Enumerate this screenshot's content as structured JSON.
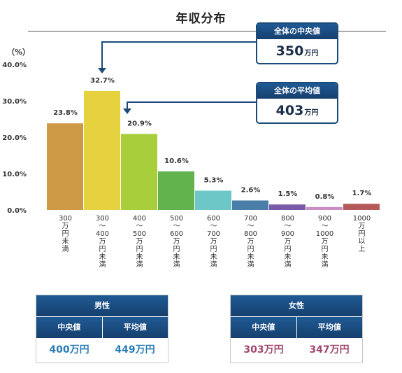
{
  "title": "年収分布",
  "y_unit": "（%）",
  "median_box": {
    "label": "全体の中央値",
    "value": "350",
    "unit": "万円"
  },
  "average_box": {
    "label": "全体の平均値",
    "value": "403",
    "unit": "万円"
  },
  "male": {
    "label": "男性",
    "median_label": "中央値",
    "average_label": "平均値",
    "median": "400万円",
    "average": "449万円"
  },
  "female": {
    "label": "女性",
    "median_label": "中央値",
    "average_label": "平均値",
    "median": "303万円",
    "average": "347万円"
  },
  "chart_data": {
    "type": "bar",
    "title": "年収分布",
    "ylabel": "（%）",
    "ylim": [
      0,
      40
    ],
    "yticks": [
      "0.0%",
      "10.0%",
      "20.0%",
      "30.0%",
      "40.0%"
    ],
    "tick_values": [
      0,
      10,
      20,
      30,
      40
    ],
    "grid": false,
    "categories": [
      [
        "300",
        "万",
        "円",
        "未",
        "満"
      ],
      [
        "300",
        "〜",
        "400",
        "万",
        "円",
        "未",
        "満"
      ],
      [
        "400",
        "〜",
        "500",
        "万",
        "円",
        "未",
        "満"
      ],
      [
        "500",
        "〜",
        "600",
        "万",
        "円",
        "未",
        "満"
      ],
      [
        "600",
        "〜",
        "700",
        "万",
        "円",
        "未",
        "満"
      ],
      [
        "700",
        "〜",
        "800",
        "万",
        "円",
        "未",
        "満"
      ],
      [
        "800",
        "〜",
        "900",
        "万",
        "円",
        "未",
        "満"
      ],
      [
        "900",
        "〜",
        "1000",
        "万",
        "円",
        "未",
        "満"
      ],
      [
        "1000",
        "万",
        "円",
        "以",
        "上"
      ]
    ],
    "values": [
      23.8,
      32.7,
      20.9,
      10.6,
      5.3,
      2.6,
      1.5,
      0.8,
      1.7
    ],
    "data_labels": [
      "23.8%",
      "32.7%",
      "20.9%",
      "10.6%",
      "5.3%",
      "2.6%",
      "1.5%",
      "0.8%",
      "1.7%"
    ],
    "colors": [
      "#cf9a45",
      "#e6d23e",
      "#a8cf3b",
      "#62b24e",
      "#6cc7c6",
      "#4a7ea8",
      "#7a5aa6",
      "#c98fc5",
      "#b55a5a"
    ],
    "arrow_color": "#1a4a78"
  }
}
